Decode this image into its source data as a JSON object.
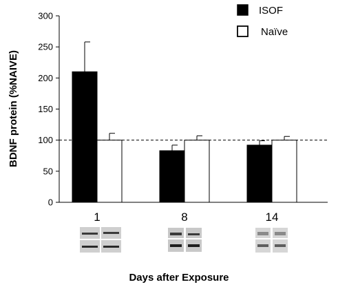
{
  "chart_data": {
    "type": "bar",
    "categories": [
      "1",
      "8",
      "14"
    ],
    "series": [
      {
        "name": "ISOF",
        "values": [
          210,
          83,
          92
        ],
        "errors": [
          48,
          9,
          7
        ],
        "color": "#000000"
      },
      {
        "name": "Naïve",
        "values": [
          100,
          100,
          100
        ],
        "errors": [
          11,
          7,
          6
        ],
        "color": "#ffffff"
      }
    ],
    "xlabel": "Days after Exposure",
    "ylabel": "BDNF protein (%NAIVE)",
    "ylim": [
      0,
      300
    ],
    "yticks": [
      0,
      50,
      100,
      150,
      200,
      250,
      300
    ],
    "reference_line": 100,
    "legend_position": "top-right",
    "grid": false
  }
}
